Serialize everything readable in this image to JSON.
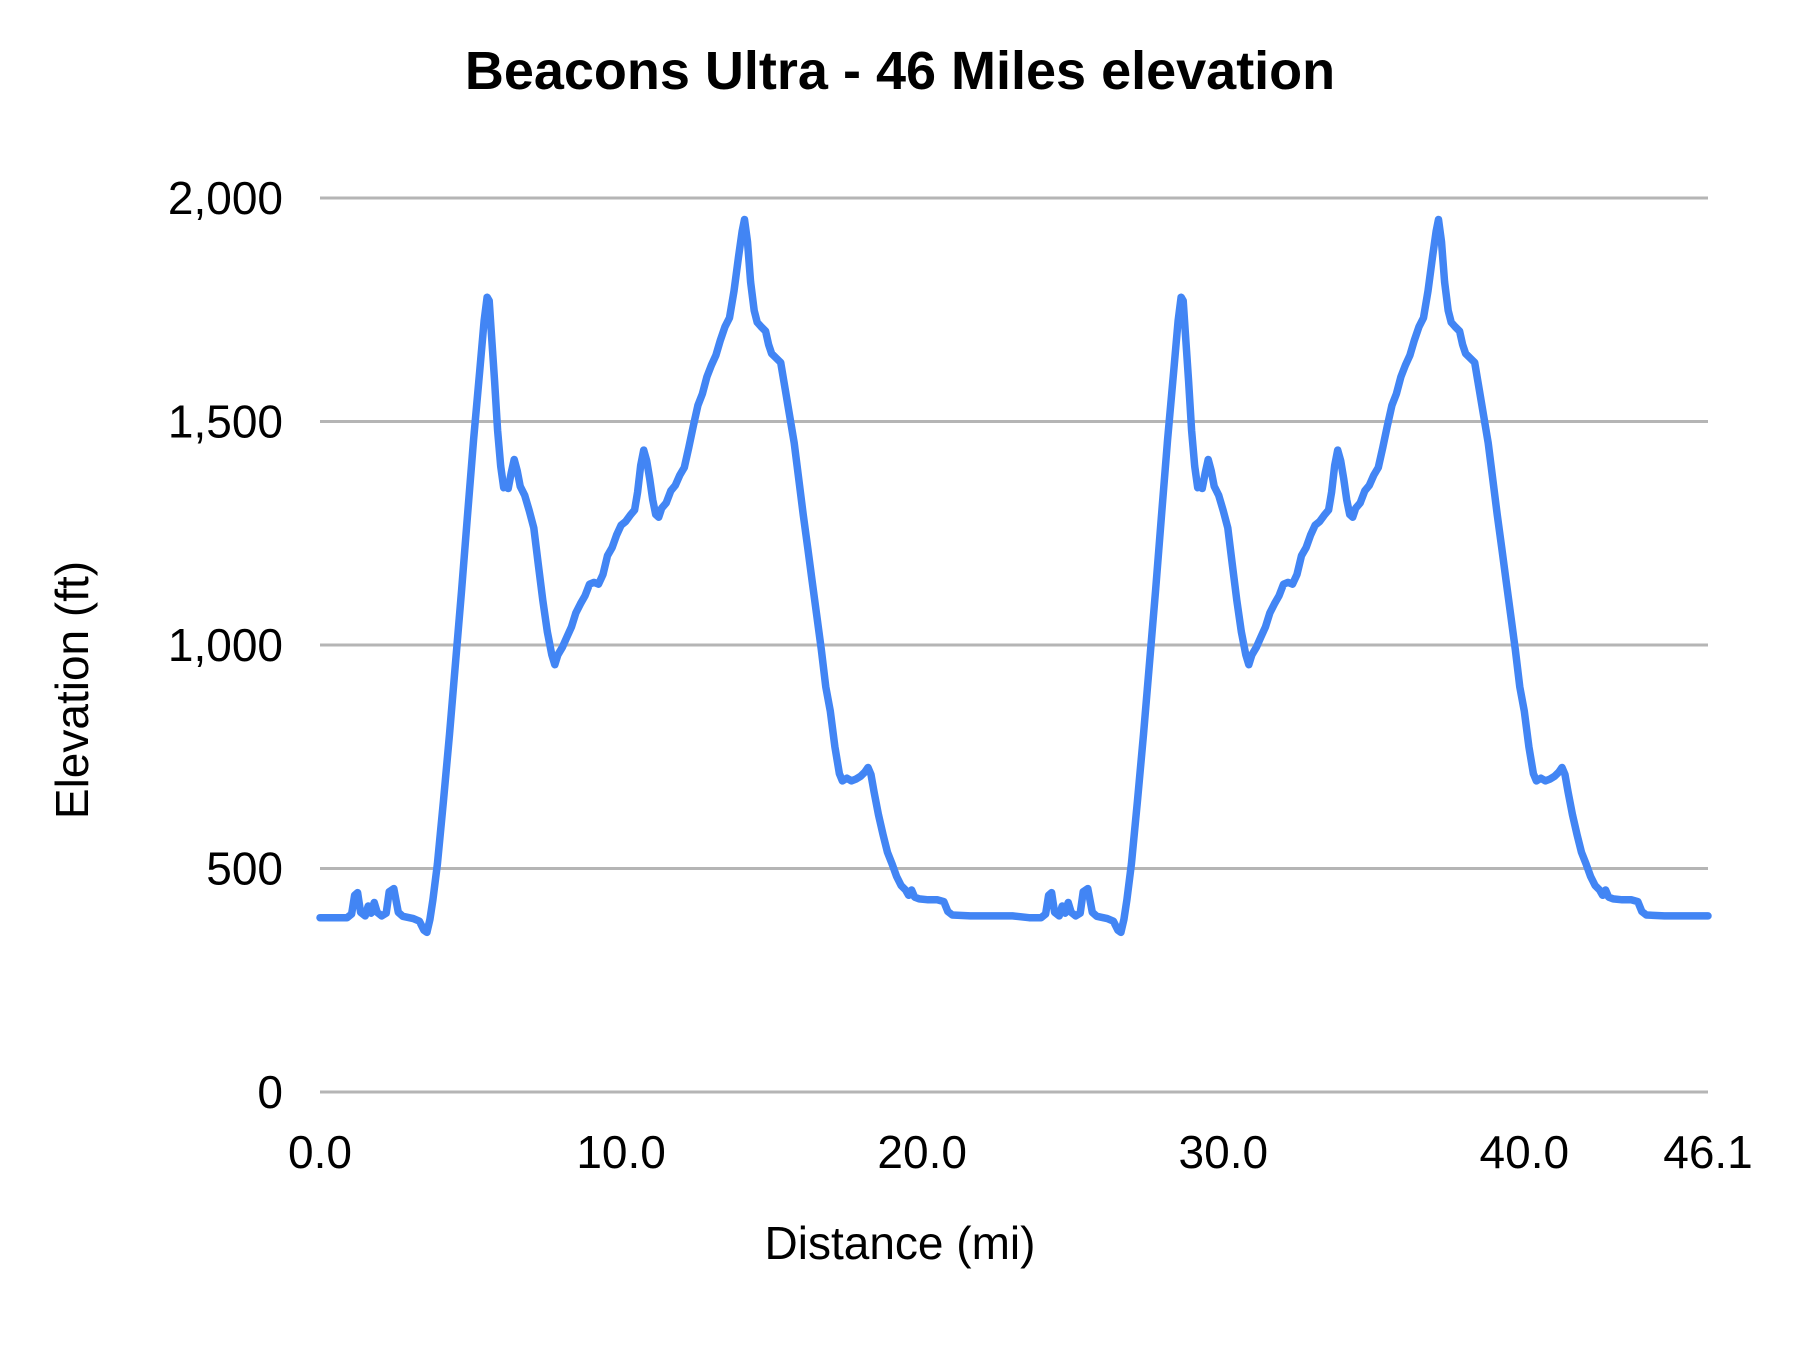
{
  "title": "Beacons Ultra - 46 Miles elevation",
  "x_axis": {
    "title": "Distance (mi)",
    "min": 0,
    "max": 46.1,
    "tick_values": [
      0,
      10,
      20,
      30,
      40,
      46.1
    ],
    "tick_labels": [
      "0.0",
      "10.0",
      "20.0",
      "30.0",
      "40.0",
      "46.1"
    ]
  },
  "y_axis": {
    "title": "Elevation (ft)",
    "min": 0,
    "max": 2000,
    "tick_values": [
      0,
      500,
      1000,
      1500,
      2000
    ],
    "tick_labels": [
      "0",
      "500",
      "1,000",
      "1,500",
      "2,000"
    ]
  },
  "colors": {
    "line": "#4285f4",
    "gridline": "#b5b5b5",
    "text": "#000000",
    "background": "#ffffff"
  },
  "chart_data": {
    "type": "line",
    "title": "Beacons Ultra - 46 Miles elevation",
    "xlabel": "Distance (mi)",
    "ylabel": "Elevation (ft)",
    "xlim": [
      0,
      46.1
    ],
    "ylim": [
      0,
      2000
    ],
    "grid": "horizontal",
    "legend": "none",
    "description": "Two-lap ultramarathon elevation profile; lap 2 (miles 23.05-46.1) repeats lap 1",
    "series": [
      {
        "name": "Elevation",
        "color": "#4285f4",
        "points": [
          [
            0,
            390
          ],
          [
            0.5,
            390
          ],
          [
            0.9,
            390
          ],
          [
            1.05,
            398
          ],
          [
            1.15,
            440
          ],
          [
            1.25,
            446
          ],
          [
            1.35,
            402
          ],
          [
            1.5,
            394
          ],
          [
            1.6,
            416
          ],
          [
            1.7,
            400
          ],
          [
            1.8,
            424
          ],
          [
            1.9,
            402
          ],
          [
            2.05,
            394
          ],
          [
            2.2,
            400
          ],
          [
            2.3,
            448
          ],
          [
            2.45,
            455
          ],
          [
            2.6,
            402
          ],
          [
            2.75,
            393
          ],
          [
            3.1,
            388
          ],
          [
            3.3,
            382
          ],
          [
            3.45,
            362
          ],
          [
            3.55,
            357
          ],
          [
            3.65,
            386
          ],
          [
            3.75,
            430
          ],
          [
            3.9,
            510
          ],
          [
            4.1,
            650
          ],
          [
            4.3,
            800
          ],
          [
            4.5,
            960
          ],
          [
            4.7,
            1120
          ],
          [
            4.9,
            1290
          ],
          [
            5.1,
            1460
          ],
          [
            5.3,
            1610
          ],
          [
            5.45,
            1725
          ],
          [
            5.55,
            1778
          ],
          [
            5.62,
            1770
          ],
          [
            5.7,
            1690
          ],
          [
            5.8,
            1590
          ],
          [
            5.9,
            1480
          ],
          [
            6,
            1400
          ],
          [
            6.1,
            1352
          ],
          [
            6.18,
            1360
          ],
          [
            6.25,
            1350
          ],
          [
            6.35,
            1385
          ],
          [
            6.45,
            1415
          ],
          [
            6.55,
            1390
          ],
          [
            6.65,
            1355
          ],
          [
            6.8,
            1335
          ],
          [
            6.95,
            1300
          ],
          [
            7.1,
            1262
          ],
          [
            7.25,
            1180
          ],
          [
            7.4,
            1100
          ],
          [
            7.55,
            1030
          ],
          [
            7.7,
            978
          ],
          [
            7.8,
            956
          ],
          [
            7.9,
            978
          ],
          [
            8.05,
            995
          ],
          [
            8.2,
            1018
          ],
          [
            8.35,
            1040
          ],
          [
            8.5,
            1072
          ],
          [
            8.65,
            1092
          ],
          [
            8.8,
            1110
          ],
          [
            8.95,
            1136
          ],
          [
            9.1,
            1140
          ],
          [
            9.25,
            1136
          ],
          [
            9.4,
            1158
          ],
          [
            9.55,
            1200
          ],
          [
            9.7,
            1218
          ],
          [
            9.85,
            1246
          ],
          [
            10,
            1268
          ],
          [
            10.15,
            1276
          ],
          [
            10.3,
            1290
          ],
          [
            10.45,
            1302
          ],
          [
            10.55,
            1342
          ],
          [
            10.65,
            1402
          ],
          [
            10.75,
            1436
          ],
          [
            10.85,
            1412
          ],
          [
            10.95,
            1372
          ],
          [
            11.05,
            1325
          ],
          [
            11.15,
            1292
          ],
          [
            11.25,
            1286
          ],
          [
            11.35,
            1306
          ],
          [
            11.5,
            1318
          ],
          [
            11.65,
            1345
          ],
          [
            11.8,
            1357
          ],
          [
            11.95,
            1380
          ],
          [
            12.1,
            1397
          ],
          [
            12.25,
            1442
          ],
          [
            12.4,
            1490
          ],
          [
            12.55,
            1536
          ],
          [
            12.7,
            1562
          ],
          [
            12.85,
            1600
          ],
          [
            13,
            1626
          ],
          [
            13.15,
            1648
          ],
          [
            13.3,
            1682
          ],
          [
            13.45,
            1712
          ],
          [
            13.6,
            1732
          ],
          [
            13.75,
            1792
          ],
          [
            13.9,
            1868
          ],
          [
            14.02,
            1925
          ],
          [
            14.1,
            1952
          ],
          [
            14.2,
            1902
          ],
          [
            14.3,
            1812
          ],
          [
            14.42,
            1748
          ],
          [
            14.52,
            1722
          ],
          [
            14.65,
            1712
          ],
          [
            14.8,
            1702
          ],
          [
            14.9,
            1672
          ],
          [
            15,
            1652
          ],
          [
            15.15,
            1642
          ],
          [
            15.3,
            1632
          ],
          [
            15.45,
            1572
          ],
          [
            15.6,
            1512
          ],
          [
            15.75,
            1452
          ],
          [
            15.9,
            1372
          ],
          [
            16.05,
            1292
          ],
          [
            16.2,
            1216
          ],
          [
            16.35,
            1140
          ],
          [
            16.5,
            1065
          ],
          [
            16.65,
            990
          ],
          [
            16.8,
            906
          ],
          [
            16.95,
            852
          ],
          [
            17.1,
            772
          ],
          [
            17.25,
            712
          ],
          [
            17.35,
            696
          ],
          [
            17.5,
            702
          ],
          [
            17.65,
            696
          ],
          [
            17.8,
            700
          ],
          [
            17.95,
            706
          ],
          [
            18.1,
            716
          ],
          [
            18.2,
            726
          ],
          [
            18.3,
            710
          ],
          [
            18.4,
            672
          ],
          [
            18.55,
            620
          ],
          [
            18.7,
            576
          ],
          [
            18.85,
            536
          ],
          [
            19,
            510
          ],
          [
            19.15,
            482
          ],
          [
            19.3,
            462
          ],
          [
            19.45,
            452
          ],
          [
            19.55,
            440
          ],
          [
            19.65,
            452
          ],
          [
            19.75,
            436
          ],
          [
            19.9,
            432
          ],
          [
            20.2,
            430
          ],
          [
            20.5,
            430
          ],
          [
            20.72,
            426
          ],
          [
            20.85,
            404
          ],
          [
            21,
            396
          ],
          [
            21.6,
            394
          ],
          [
            22.3,
            394
          ],
          [
            23,
            394
          ],
          [
            23.55,
            390
          ],
          [
            23.95,
            390
          ],
          [
            24.1,
            398
          ],
          [
            24.2,
            440
          ],
          [
            24.3,
            446
          ],
          [
            24.4,
            402
          ],
          [
            24.55,
            394
          ],
          [
            24.65,
            416
          ],
          [
            24.75,
            400
          ],
          [
            24.85,
            424
          ],
          [
            24.95,
            402
          ],
          [
            25.1,
            394
          ],
          [
            25.25,
            400
          ],
          [
            25.35,
            448
          ],
          [
            25.5,
            455
          ],
          [
            25.65,
            402
          ],
          [
            25.8,
            393
          ],
          [
            26.15,
            388
          ],
          [
            26.35,
            382
          ],
          [
            26.5,
            362
          ],
          [
            26.6,
            357
          ],
          [
            26.7,
            386
          ],
          [
            26.8,
            430
          ],
          [
            26.95,
            510
          ],
          [
            27.15,
            650
          ],
          [
            27.35,
            800
          ],
          [
            27.55,
            960
          ],
          [
            27.75,
            1120
          ],
          [
            27.95,
            1290
          ],
          [
            28.15,
            1460
          ],
          [
            28.35,
            1610
          ],
          [
            28.5,
            1725
          ],
          [
            28.6,
            1778
          ],
          [
            28.67,
            1770
          ],
          [
            28.75,
            1690
          ],
          [
            28.85,
            1590
          ],
          [
            28.95,
            1480
          ],
          [
            29.05,
            1400
          ],
          [
            29.15,
            1352
          ],
          [
            29.23,
            1360
          ],
          [
            29.3,
            1350
          ],
          [
            29.4,
            1385
          ],
          [
            29.5,
            1415
          ],
          [
            29.6,
            1390
          ],
          [
            29.7,
            1355
          ],
          [
            29.85,
            1335
          ],
          [
            30,
            1300
          ],
          [
            30.15,
            1262
          ],
          [
            30.3,
            1180
          ],
          [
            30.45,
            1100
          ],
          [
            30.6,
            1030
          ],
          [
            30.75,
            978
          ],
          [
            30.85,
            956
          ],
          [
            30.95,
            978
          ],
          [
            31.1,
            995
          ],
          [
            31.25,
            1018
          ],
          [
            31.4,
            1040
          ],
          [
            31.55,
            1072
          ],
          [
            31.7,
            1092
          ],
          [
            31.85,
            1110
          ],
          [
            32,
            1136
          ],
          [
            32.15,
            1140
          ],
          [
            32.3,
            1136
          ],
          [
            32.45,
            1158
          ],
          [
            32.6,
            1200
          ],
          [
            32.75,
            1218
          ],
          [
            32.9,
            1246
          ],
          [
            33.05,
            1268
          ],
          [
            33.2,
            1276
          ],
          [
            33.35,
            1290
          ],
          [
            33.5,
            1302
          ],
          [
            33.6,
            1342
          ],
          [
            33.7,
            1402
          ],
          [
            33.8,
            1436
          ],
          [
            33.9,
            1412
          ],
          [
            34,
            1372
          ],
          [
            34.1,
            1325
          ],
          [
            34.2,
            1292
          ],
          [
            34.3,
            1286
          ],
          [
            34.4,
            1306
          ],
          [
            34.55,
            1318
          ],
          [
            34.7,
            1345
          ],
          [
            34.85,
            1357
          ],
          [
            35,
            1380
          ],
          [
            35.15,
            1397
          ],
          [
            35.3,
            1442
          ],
          [
            35.45,
            1490
          ],
          [
            35.6,
            1536
          ],
          [
            35.75,
            1562
          ],
          [
            35.9,
            1600
          ],
          [
            36.05,
            1626
          ],
          [
            36.2,
            1648
          ],
          [
            36.35,
            1682
          ],
          [
            36.5,
            1712
          ],
          [
            36.65,
            1732
          ],
          [
            36.8,
            1792
          ],
          [
            36.95,
            1868
          ],
          [
            37.07,
            1925
          ],
          [
            37.15,
            1952
          ],
          [
            37.25,
            1902
          ],
          [
            37.35,
            1812
          ],
          [
            37.47,
            1748
          ],
          [
            37.57,
            1722
          ],
          [
            37.7,
            1712
          ],
          [
            37.85,
            1702
          ],
          [
            37.95,
            1672
          ],
          [
            38.05,
            1652
          ],
          [
            38.2,
            1642
          ],
          [
            38.35,
            1632
          ],
          [
            38.5,
            1572
          ],
          [
            38.65,
            1512
          ],
          [
            38.8,
            1452
          ],
          [
            38.95,
            1372
          ],
          [
            39.1,
            1292
          ],
          [
            39.25,
            1216
          ],
          [
            39.4,
            1140
          ],
          [
            39.55,
            1065
          ],
          [
            39.7,
            990
          ],
          [
            39.85,
            906
          ],
          [
            40,
            852
          ],
          [
            40.15,
            772
          ],
          [
            40.3,
            712
          ],
          [
            40.4,
            696
          ],
          [
            40.55,
            702
          ],
          [
            40.7,
            696
          ],
          [
            40.85,
            700
          ],
          [
            41,
            706
          ],
          [
            41.15,
            716
          ],
          [
            41.25,
            726
          ],
          [
            41.35,
            710
          ],
          [
            41.45,
            672
          ],
          [
            41.6,
            620
          ],
          [
            41.75,
            576
          ],
          [
            41.9,
            536
          ],
          [
            42.05,
            510
          ],
          [
            42.2,
            482
          ],
          [
            42.35,
            462
          ],
          [
            42.5,
            452
          ],
          [
            42.6,
            440
          ],
          [
            42.7,
            452
          ],
          [
            42.8,
            436
          ],
          [
            42.95,
            432
          ],
          [
            43.25,
            430
          ],
          [
            43.55,
            430
          ],
          [
            43.77,
            426
          ],
          [
            43.9,
            404
          ],
          [
            44.05,
            396
          ],
          [
            44.65,
            394
          ],
          [
            45.35,
            394
          ],
          [
            46.05,
            394
          ],
          [
            46.1,
            394
          ]
        ]
      }
    ]
  }
}
